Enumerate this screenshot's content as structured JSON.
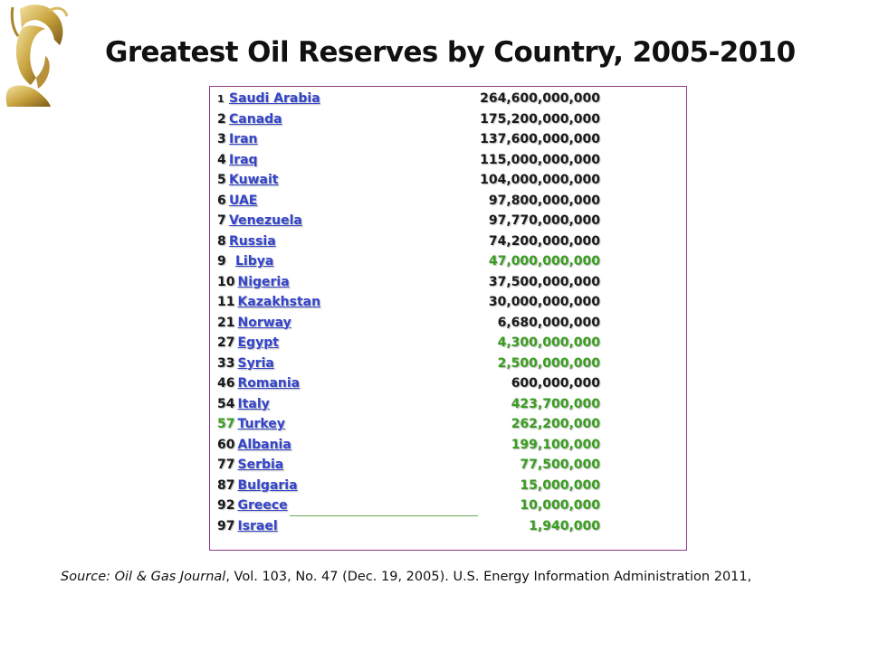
{
  "title": "Greatest Oil Reserves by Country, 2005-2010",
  "colors": {
    "link": "#3344cc",
    "highlight": "#3a9e1f",
    "border": "#8a3a8a"
  },
  "logo_icon": "athena-helmet-icon",
  "rows": [
    {
      "rank": "1",
      "country": "Saudi Arabia",
      "reserves": "264,600,000,000",
      "green_value": false,
      "green_rank": false
    },
    {
      "rank": "2",
      "country": "Canada",
      "reserves": "175,200,000,000",
      "green_value": false,
      "green_rank": false
    },
    {
      "rank": "3",
      "country": "Iran",
      "reserves": "137,600,000,000",
      "green_value": false,
      "green_rank": false
    },
    {
      "rank": "4",
      "country": "Iraq",
      "reserves": "115,000,000,000",
      "green_value": false,
      "green_rank": false
    },
    {
      "rank": "5",
      "country": "Kuwait",
      "reserves": "104,000,000,000",
      "green_value": false,
      "green_rank": false
    },
    {
      "rank": "6",
      "country": "UAE",
      "reserves": "97,800,000,000",
      "green_value": false,
      "green_rank": false
    },
    {
      "rank": "7",
      "country": "Venezuela",
      "reserves": "97,770,000,000",
      "green_value": false,
      "green_rank": false
    },
    {
      "rank": "8",
      "country": "Russia",
      "reserves": "74,200,000,000",
      "green_value": false,
      "green_rank": false
    },
    {
      "rank": "9",
      "country": "Libya",
      "reserves": "47,000,000,000",
      "green_value": true,
      "green_rank": false
    },
    {
      "rank": "10",
      "country": "Nigeria",
      "reserves": "37,500,000,000",
      "green_value": false,
      "green_rank": false
    },
    {
      "rank": "11",
      "country": "Kazakhstan",
      "reserves": "30,000,000,000",
      "green_value": false,
      "green_rank": false
    },
    {
      "rank": "21",
      "country": "Norway",
      "reserves": "6,680,000,000",
      "green_value": false,
      "green_rank": false
    },
    {
      "rank": "27",
      "country": "Egypt",
      "reserves": "4,300,000,000",
      "green_value": true,
      "green_rank": false
    },
    {
      "rank": "33",
      "country": "Syria",
      "reserves": "2,500,000,000",
      "green_value": true,
      "green_rank": false
    },
    {
      "rank": "46",
      "country": "Romania",
      "reserves": "600,000,000",
      "green_value": false,
      "green_rank": false
    },
    {
      "rank": "54",
      "country": "Italy",
      "reserves": "423,700,000",
      "green_value": true,
      "green_rank": false
    },
    {
      "rank": "57",
      "country": "Turkey",
      "reserves": "262,200,000",
      "green_value": true,
      "green_rank": true
    },
    {
      "rank": "60",
      "country": "Albania",
      "reserves": "199,100,000",
      "green_value": true,
      "green_rank": false
    },
    {
      "rank": "77",
      "country": "Serbia",
      "reserves": "77,500,000",
      "green_value": true,
      "green_rank": false
    },
    {
      "rank": "87",
      "country": "Bulgaria",
      "reserves": "15,000,000",
      "green_value": true,
      "green_rank": false
    },
    {
      "rank": "92",
      "country": "Greece",
      "reserves": "10,000,000",
      "green_value": true,
      "green_rank": false
    },
    {
      "rank": "97",
      "country": "Israel",
      "reserves": "1,940,000",
      "green_value": true,
      "green_rank": false
    }
  ],
  "source": {
    "italic_part": "Source: Oil & Gas Journal",
    "rest": ", Vol. 103, No. 47 (Dec. 19, 2005). U.S. Energy Information Administration 2011,"
  }
}
